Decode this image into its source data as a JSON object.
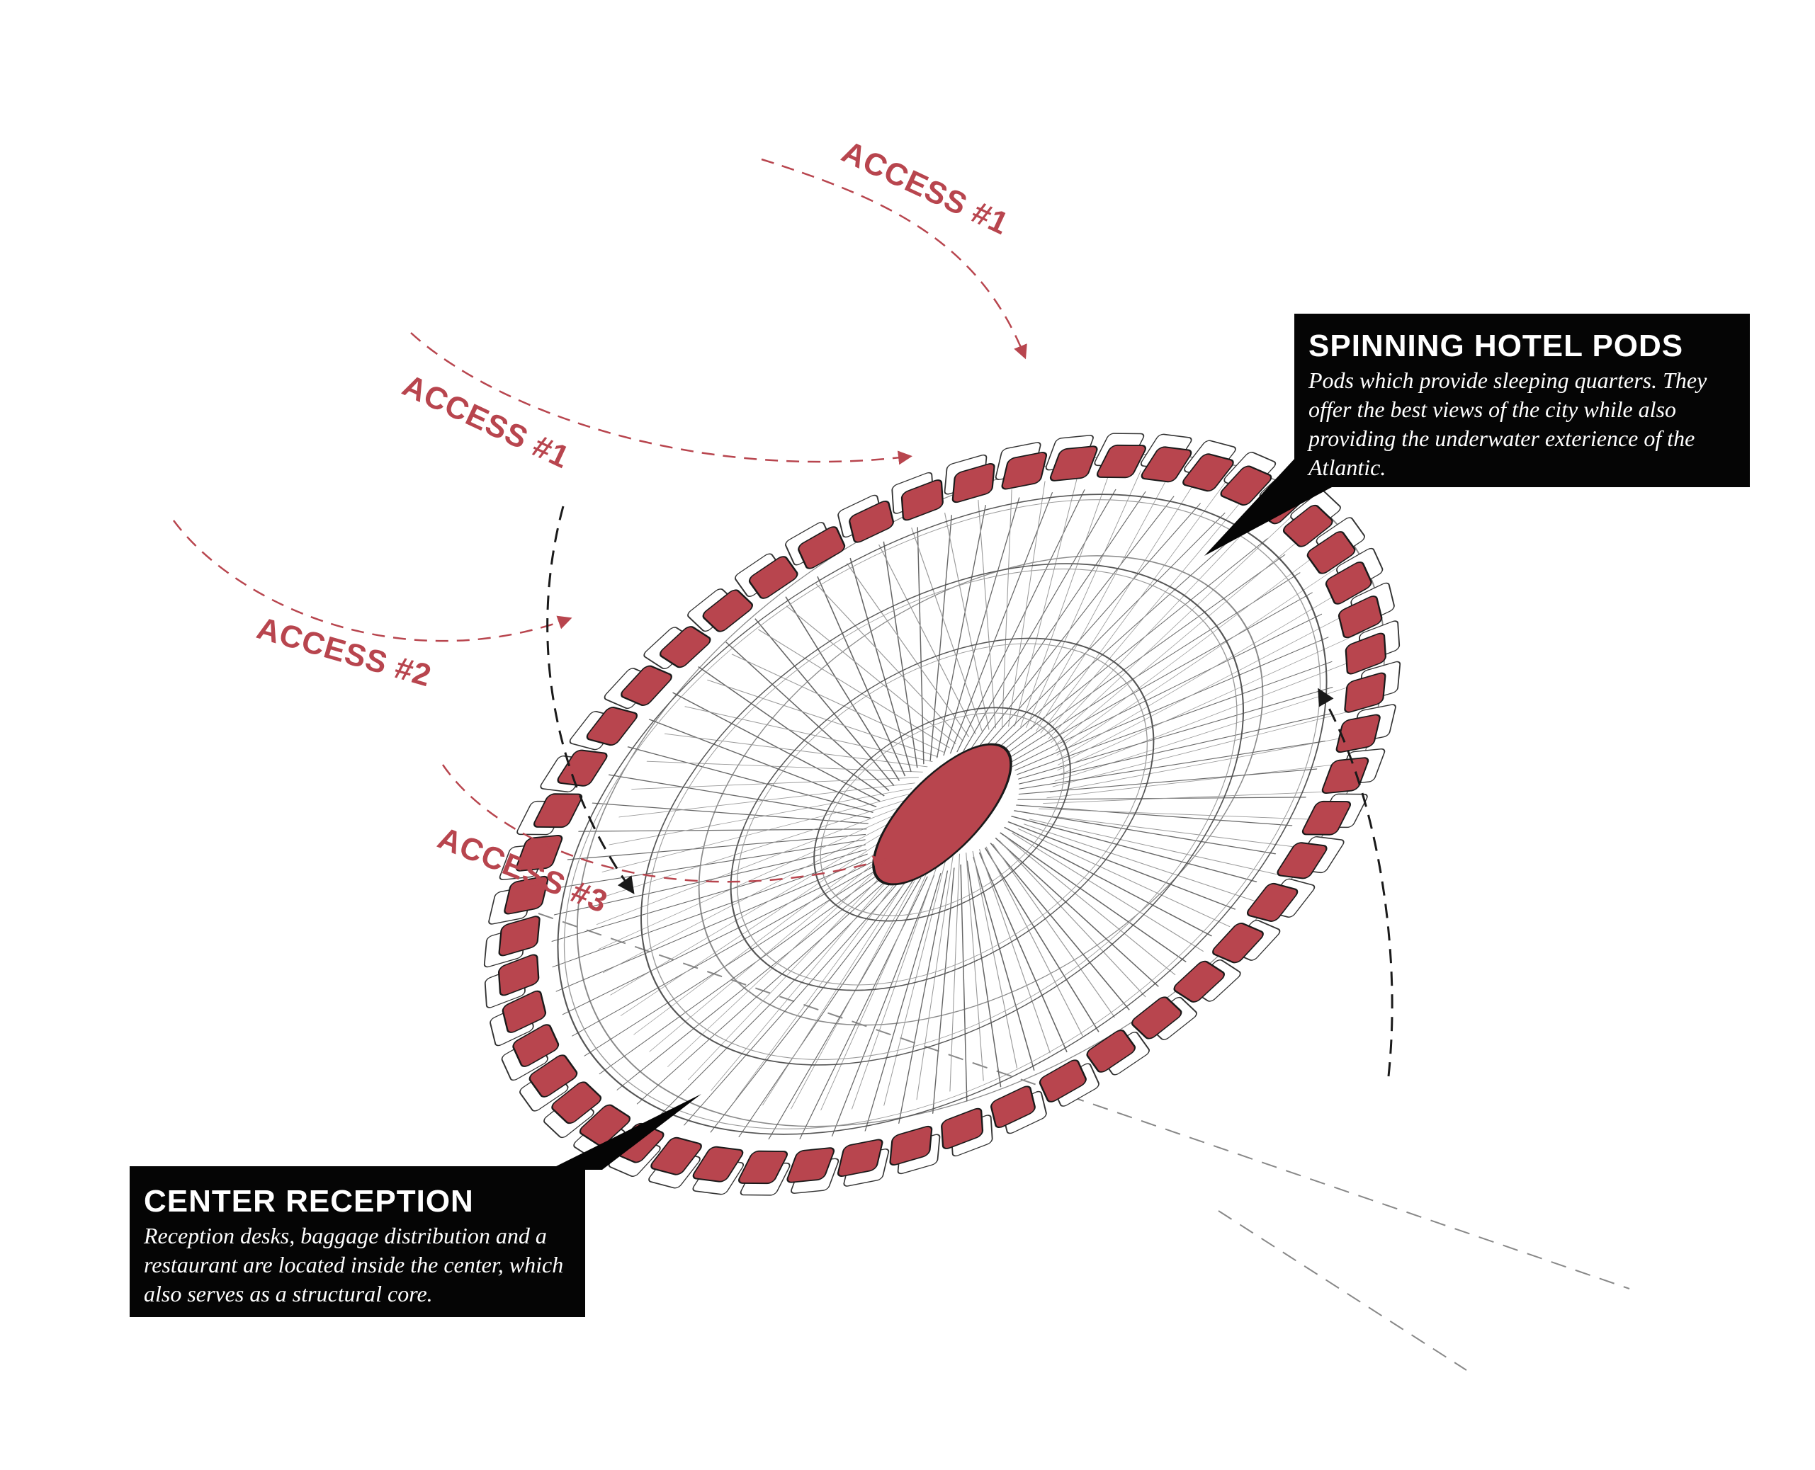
{
  "colors": {
    "accent": "#b8454e",
    "line": "#777777",
    "ink": "#1a1a1a",
    "callout_bg": "#050505"
  },
  "access_labels": [
    "ACCESS #1",
    "ACCESS #1",
    "ACCESS #2",
    "ACCESS #3"
  ],
  "callouts": {
    "pods": {
      "title": "SPINNING HOTEL PODS",
      "body": "Pods which provide sleeping quarters. They offer the best views of the city while also providing the underwater exterience of the Atlantic."
    },
    "reception": {
      "title": "CENTER RECEPTION",
      "body": "Reception desks, baggage distribution and a restaurant are located inside the center, which also serves as a structural core."
    }
  }
}
